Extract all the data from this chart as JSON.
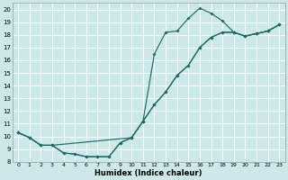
{
  "xlabel": "Humidex (Indice chaleur)",
  "bg_color": "#cde8e8",
  "grid_color": "#b8d8d8",
  "line_color": "#1a6b6b",
  "xlim": [
    -0.5,
    23.5
  ],
  "ylim": [
    8.0,
    20.5
  ],
  "yticks": [
    8,
    9,
    10,
    11,
    12,
    13,
    14,
    15,
    16,
    17,
    18,
    19,
    20
  ],
  "xticks": [
    0,
    1,
    2,
    3,
    4,
    5,
    6,
    7,
    8,
    9,
    10,
    11,
    12,
    13,
    14,
    15,
    16,
    17,
    18,
    19,
    20,
    21,
    22,
    23
  ],
  "curve_top_x": [
    0,
    1,
    2,
    3,
    4,
    5,
    6,
    7,
    8,
    9,
    10,
    11,
    12,
    13,
    14,
    15,
    16,
    17,
    18,
    19,
    20,
    21,
    22,
    23
  ],
  "curve_top_y": [
    10.3,
    9.9,
    9.3,
    9.3,
    8.7,
    8.6,
    8.4,
    8.4,
    8.4,
    9.5,
    9.9,
    11.2,
    16.5,
    18.2,
    18.3,
    19.3,
    20.1,
    19.7,
    19.1,
    18.2,
    17.9,
    18.1,
    18.3,
    18.8
  ],
  "curve_mid_x": [
    0,
    1,
    2,
    3,
    10,
    11,
    12,
    13,
    14,
    15,
    16,
    17,
    18,
    19,
    20,
    21,
    22,
    23
  ],
  "curve_mid_y": [
    10.3,
    9.9,
    9.3,
    9.3,
    9.9,
    11.2,
    12.5,
    13.5,
    14.8,
    15.6,
    17.0,
    17.8,
    18.2,
    18.2,
    17.9,
    18.1,
    18.3,
    18.8
  ],
  "curve_bot_x": [
    0,
    1,
    2,
    3,
    4,
    5,
    6,
    7,
    8,
    9,
    10,
    11,
    12,
    13,
    14,
    15,
    16,
    17,
    18,
    19,
    20,
    21,
    22,
    23
  ],
  "curve_bot_y": [
    10.3,
    9.9,
    9.3,
    9.3,
    8.7,
    8.6,
    8.4,
    8.4,
    8.4,
    9.5,
    9.9,
    11.2,
    12.5,
    13.5,
    14.8,
    15.6,
    17.0,
    17.8,
    18.2,
    18.2,
    17.9,
    18.1,
    18.3,
    18.8
  ]
}
